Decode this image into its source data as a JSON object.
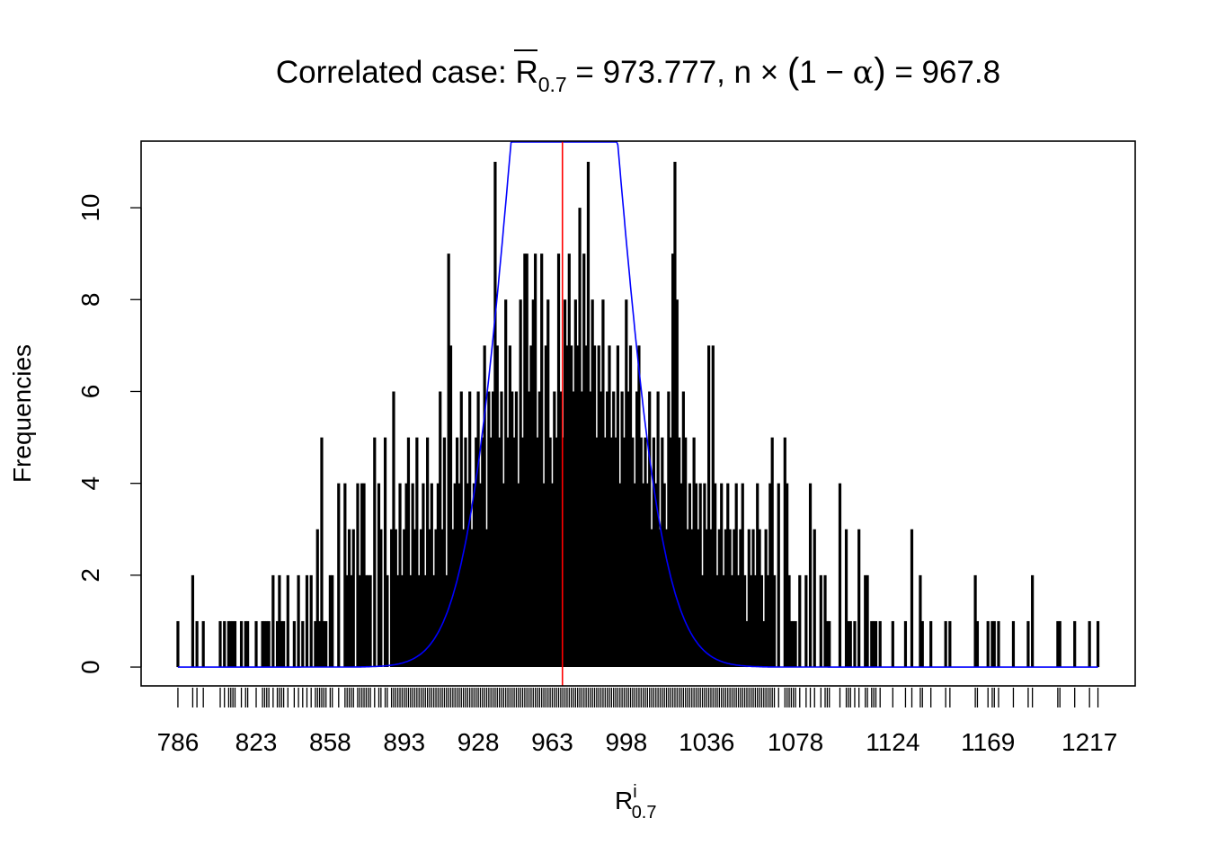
{
  "chart_data": {
    "type": "bar",
    "title": {
      "prefix": "Correlated case: ",
      "rbar": "R",
      "rbar_sub": "0.7",
      "eq1": " = 973.777, n ",
      "times": "×",
      "paren_open": "(",
      "one_minus": "1 − ",
      "alpha": "α",
      "paren_close": ")",
      "eq2": " = 967.8"
    },
    "xlabel": {
      "base": "R",
      "sup": "i",
      "sub": "0.7"
    },
    "ylabel": "Frequencies",
    "xlim": [
      768.6,
      1238.6
    ],
    "ylim": [
      -0.41,
      11.45
    ],
    "x_ticks": [
      "786",
      "823",
      "858",
      "893",
      "928",
      "963",
      "998",
      "1036",
      "1078",
      "1124",
      "1169",
      "1217"
    ],
    "y_ticks": [
      "0",
      "2",
      "4",
      "6",
      "8",
      "10"
    ],
    "reference_line": {
      "x": 967.8,
      "color": "#ff0000"
    },
    "normal_curve": {
      "mean": 968.7,
      "sd": 23.2,
      "scale": 1198,
      "color": "#0000ff"
    },
    "spike_color": "#000000",
    "tail_left": [
      [
        786,
        1
      ],
      [
        793,
        2
      ],
      [
        795,
        1
      ],
      [
        798,
        1
      ],
      [
        806,
        1
      ],
      [
        808,
        1
      ],
      [
        810,
        1
      ],
      [
        811,
        1
      ],
      [
        812,
        1
      ],
      [
        813,
        1
      ],
      [
        816,
        1
      ],
      [
        818,
        1
      ],
      [
        819,
        1
      ],
      [
        823,
        1
      ],
      [
        826,
        1
      ],
      [
        827,
        1
      ],
      [
        828,
        1
      ],
      [
        829,
        1
      ],
      [
        831,
        2
      ],
      [
        833,
        1
      ],
      [
        834,
        2
      ],
      [
        835,
        1
      ],
      [
        836,
        1
      ],
      [
        838,
        2
      ],
      [
        841,
        1
      ],
      [
        843,
        2
      ],
      [
        845,
        1
      ],
      [
        847,
        2
      ],
      [
        849,
        2
      ],
      [
        851,
        1
      ],
      [
        852,
        3
      ],
      [
        853,
        1
      ],
      [
        854,
        5
      ],
      [
        855,
        1
      ],
      [
        856,
        1
      ],
      [
        858,
        2
      ],
      [
        859,
        2
      ],
      [
        862,
        4
      ],
      [
        865,
        4
      ],
      [
        866,
        2
      ],
      [
        867,
        3
      ],
      [
        868,
        2
      ],
      [
        869,
        3
      ],
      [
        871,
        4
      ],
      [
        872,
        2
      ],
      [
        873,
        4
      ],
      [
        874,
        4
      ],
      [
        875,
        2
      ],
      [
        876,
        2
      ],
      [
        877,
        2
      ],
      [
        879,
        5
      ],
      [
        881,
        4
      ],
      [
        882,
        3
      ],
      [
        884,
        5
      ],
      [
        885,
        2
      ],
      [
        887,
        3
      ]
    ],
    "center_start": 888,
    "center_freqs": [
      6,
      3,
      2,
      4,
      2,
      3,
      4,
      5,
      2,
      4,
      3,
      5,
      2,
      3,
      4,
      2,
      5,
      3,
      4,
      2,
      3,
      4,
      6,
      3,
      5,
      2,
      9,
      7,
      3,
      4,
      5,
      4,
      6,
      3,
      5,
      4,
      6,
      3,
      4,
      5,
      6,
      4,
      5,
      7,
      3,
      6,
      5,
      6,
      11,
      7,
      5,
      6,
      4,
      8,
      5,
      7,
      6,
      5,
      6,
      4,
      8,
      5,
      9,
      9,
      6,
      7,
      8,
      9,
      5,
      6,
      9,
      4,
      7,
      8,
      5,
      4,
      6,
      5,
      9,
      6,
      5,
      8,
      7,
      9,
      7,
      6,
      8,
      7,
      10,
      6,
      9,
      7,
      11,
      6,
      8,
      7,
      5,
      7,
      6,
      8,
      5,
      6,
      7,
      5,
      6,
      5,
      7,
      4,
      6,
      5,
      8,
      6,
      7,
      5,
      4,
      6,
      7,
      5,
      4,
      5,
      4,
      6,
      3,
      5,
      4,
      6,
      3,
      5,
      4,
      3,
      6,
      5,
      9,
      11,
      8,
      5,
      4,
      6,
      5,
      3,
      4,
      3,
      5,
      4,
      3,
      4,
      2,
      4,
      3,
      7,
      3,
      7,
      4,
      2,
      3,
      4,
      2,
      3,
      4,
      3,
      2,
      3,
      4,
      2,
      3,
      4,
      2,
      1,
      3,
      2,
      3,
      2,
      4,
      3,
      2,
      1,
      3,
      2,
      4,
      5
    ],
    "tail_right": [
      [
        1068,
        2
      ],
      [
        1070,
        4
      ],
      [
        1073,
        5
      ],
      [
        1074,
        4
      ],
      [
        1075,
        2
      ],
      [
        1076,
        1
      ],
      [
        1077,
        1
      ],
      [
        1078,
        1
      ],
      [
        1080,
        2
      ],
      [
        1083,
        2
      ],
      [
        1085,
        4
      ],
      [
        1087,
        3
      ],
      [
        1090,
        2
      ],
      [
        1092,
        2
      ],
      [
        1093,
        1
      ],
      [
        1094,
        1
      ],
      [
        1099,
        4
      ],
      [
        1102,
        3
      ],
      [
        1103,
        1
      ],
      [
        1104,
        1
      ],
      [
        1106,
        1
      ],
      [
        1108,
        3
      ],
      [
        1111,
        2
      ],
      [
        1112,
        2
      ],
      [
        1114,
        1
      ],
      [
        1115,
        1
      ],
      [
        1116,
        1
      ],
      [
        1118,
        1
      ],
      [
        1124,
        1
      ],
      [
        1130,
        1
      ],
      [
        1133,
        3
      ],
      [
        1137,
        2
      ],
      [
        1138,
        1
      ],
      [
        1142,
        1
      ],
      [
        1149,
        1
      ],
      [
        1151,
        1
      ],
      [
        1163,
        2
      ],
      [
        1164,
        1
      ],
      [
        1169,
        1
      ],
      [
        1171,
        1
      ],
      [
        1172,
        1
      ],
      [
        1174,
        1
      ],
      [
        1181,
        1
      ],
      [
        1188,
        1
      ],
      [
        1190,
        2
      ],
      [
        1202,
        1
      ],
      [
        1203,
        1
      ],
      [
        1210,
        1
      ],
      [
        1217,
        1
      ],
      [
        1221,
        1
      ]
    ]
  }
}
